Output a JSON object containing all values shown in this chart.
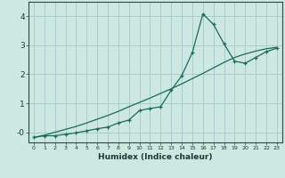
{
  "xlabel": "Humidex (Indice chaleur)",
  "ylabel": "",
  "background_color": "#cce8e0",
  "grid_color": "#aacccc",
  "line_color": "#1a6b5a",
  "xlim": [
    -0.5,
    23.5
  ],
  "ylim": [
    -0.35,
    4.5
  ],
  "xticks": [
    0,
    1,
    2,
    3,
    4,
    5,
    6,
    7,
    8,
    9,
    10,
    11,
    12,
    13,
    14,
    15,
    16,
    17,
    18,
    19,
    20,
    21,
    22,
    23
  ],
  "yticks": [
    0,
    1,
    2,
    3,
    4
  ],
  "ytick_labels": [
    "-0",
    "1",
    "2",
    "3",
    "4"
  ],
  "x_data": [
    0,
    1,
    2,
    3,
    4,
    5,
    6,
    7,
    8,
    9,
    10,
    11,
    12,
    13,
    14,
    15,
    16,
    17,
    18,
    19,
    20,
    21,
    22,
    23
  ],
  "y_data1": [
    -0.18,
    -0.12,
    -0.12,
    -0.07,
    -0.02,
    0.05,
    0.12,
    0.18,
    0.32,
    0.42,
    0.75,
    0.82,
    0.88,
    1.45,
    1.95,
    2.75,
    4.08,
    3.72,
    3.05,
    2.45,
    2.38,
    2.58,
    2.78,
    2.9
  ],
  "y_data2": [
    -0.18,
    -0.1,
    0.0,
    0.1,
    0.2,
    0.32,
    0.45,
    0.58,
    0.72,
    0.88,
    1.03,
    1.18,
    1.34,
    1.5,
    1.67,
    1.85,
    2.03,
    2.22,
    2.41,
    2.58,
    2.7,
    2.8,
    2.88,
    2.93
  ]
}
